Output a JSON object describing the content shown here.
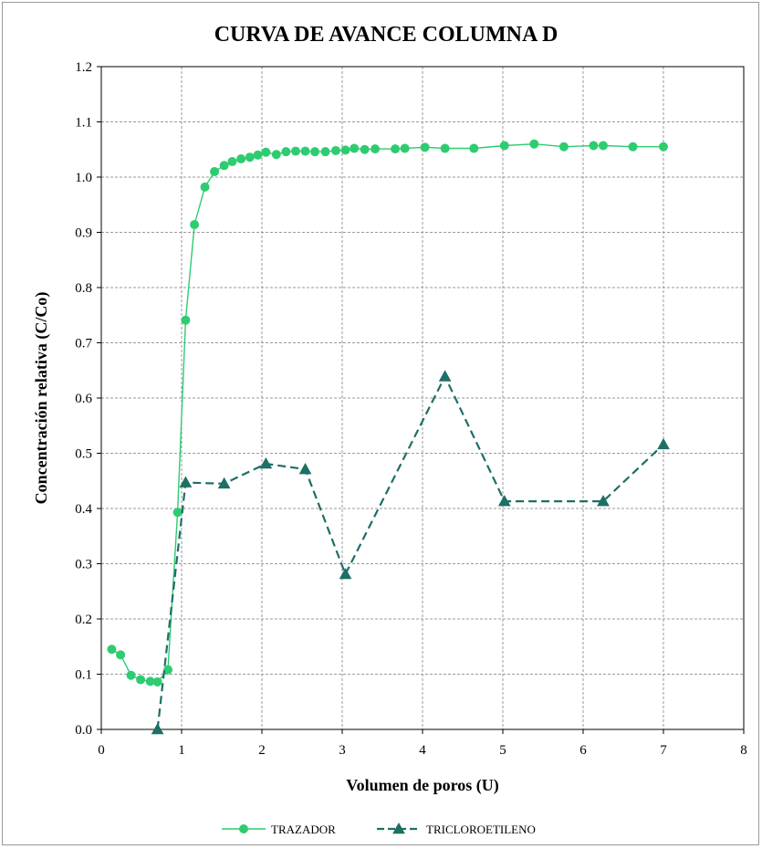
{
  "chart_data": {
    "type": "line",
    "title": "CURVA DE AVANCE  COLUMNA D",
    "xlabel": "Volumen de poros (U)",
    "ylabel": "Concentración relativa (C/Co)",
    "xlim": [
      0,
      8
    ],
    "ylim": [
      0,
      1.2
    ],
    "x_ticks": [
      "0",
      "1",
      "2",
      "3",
      "4",
      "5",
      "6",
      "7",
      "8"
    ],
    "y_ticks": [
      "0.0",
      "0.1",
      "0.2",
      "0.3",
      "0.4",
      "0.5",
      "0.6",
      "0.7",
      "0.8",
      "0.9",
      "1.0",
      "1.1",
      "1.2"
    ],
    "grid": true,
    "legend_position": "bottom",
    "series": [
      {
        "name": "TRAZADOR",
        "color": "#2ecc71",
        "marker": "circle",
        "line": "solid",
        "points": [
          [
            0.13,
            0.145
          ],
          [
            0.24,
            0.135
          ],
          [
            0.37,
            0.098
          ],
          [
            0.49,
            0.09
          ],
          [
            0.61,
            0.087
          ],
          [
            0.7,
            0.086
          ],
          [
            0.83,
            0.108
          ],
          [
            0.95,
            0.393
          ],
          [
            1.05,
            0.741
          ],
          [
            1.16,
            0.914
          ],
          [
            1.29,
            0.982
          ],
          [
            1.41,
            1.01
          ],
          [
            1.53,
            1.021
          ],
          [
            1.63,
            1.028
          ],
          [
            1.74,
            1.033
          ],
          [
            1.85,
            1.036
          ],
          [
            1.95,
            1.04
          ],
          [
            2.05,
            1.045
          ],
          [
            2.18,
            1.041
          ],
          [
            2.3,
            1.046
          ],
          [
            2.42,
            1.047
          ],
          [
            2.54,
            1.047
          ],
          [
            2.66,
            1.046
          ],
          [
            2.79,
            1.046
          ],
          [
            2.92,
            1.048
          ],
          [
            3.04,
            1.049
          ],
          [
            3.15,
            1.052
          ],
          [
            3.28,
            1.05
          ],
          [
            3.41,
            1.051
          ],
          [
            3.66,
            1.051
          ],
          [
            3.78,
            1.052
          ],
          [
            4.03,
            1.054
          ],
          [
            4.28,
            1.052
          ],
          [
            4.64,
            1.052
          ],
          [
            5.02,
            1.057
          ],
          [
            5.39,
            1.06
          ],
          [
            5.76,
            1.055
          ],
          [
            6.13,
            1.057
          ],
          [
            6.25,
            1.057
          ],
          [
            6.62,
            1.055
          ],
          [
            7.0,
            1.055
          ]
        ]
      },
      {
        "name": "TRICLOROETILENO",
        "color": "#1e6f66",
        "marker": "triangle",
        "line": "dashed",
        "points": [
          [
            0.7,
            0.0
          ],
          [
            1.05,
            0.447
          ],
          [
            1.53,
            0.445
          ],
          [
            2.05,
            0.481
          ],
          [
            2.54,
            0.471
          ],
          [
            3.04,
            0.281
          ],
          [
            4.28,
            0.639
          ],
          [
            5.02,
            0.413
          ],
          [
            6.25,
            0.413
          ],
          [
            7.0,
            0.516
          ]
        ]
      }
    ]
  }
}
